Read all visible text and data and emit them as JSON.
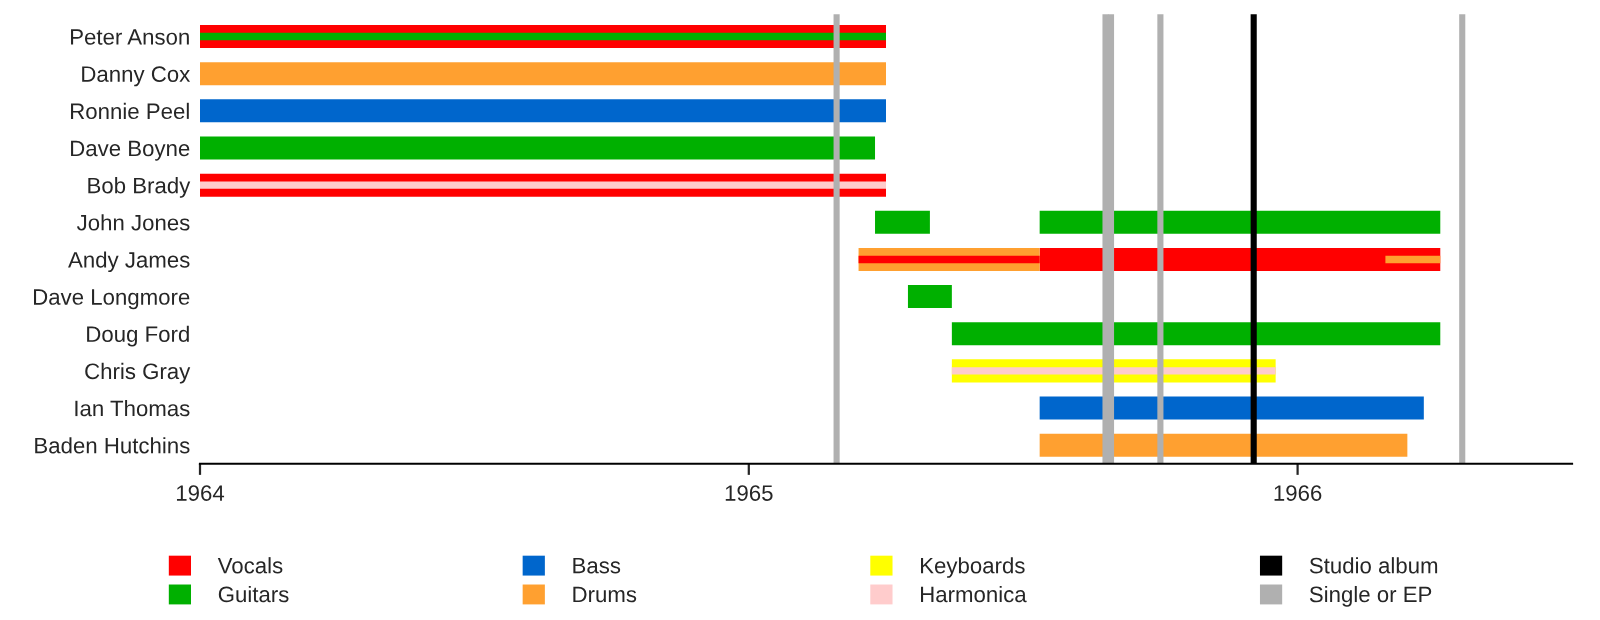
{
  "chart_data": {
    "type": "bar",
    "orientation": "horizontal",
    "categories": [
      "Peter Anson",
      "Danny Cox",
      "Ronnie Peel",
      "Dave Boyne",
      "Bob Brady",
      "John Jones",
      "Andy James",
      "Dave Longmore",
      "Doug Ford",
      "Chris Gray",
      "Ian Thomas",
      "Baden Hutchins"
    ],
    "series": [
      {
        "name": "Vocals",
        "color": "#ff0000",
        "base": [
          1964,
          null,
          null,
          null,
          1964,
          null,
          1965.53,
          null,
          null,
          null,
          null,
          null
        ],
        "values": [
          1.25,
          null,
          null,
          null,
          1.25,
          null,
          0.73,
          null,
          null,
          null,
          null,
          null
        ]
      },
      {
        "name": "Guitars",
        "color": "#00b000",
        "base": [
          null,
          null,
          null,
          1964,
          null,
          1965.23,
          null,
          1965.29,
          1965.37,
          null,
          null,
          null
        ],
        "values": [
          null,
          null,
          null,
          1.23,
          null,
          0.1,
          null,
          0.08,
          0.89,
          null,
          null,
          null
        ]
      },
      {
        "name": "Bass",
        "color": "#0066cc",
        "base": [
          null,
          null,
          1964,
          null,
          null,
          null,
          null,
          null,
          null,
          null,
          1965.53,
          null
        ],
        "values": [
          null,
          null,
          1.25,
          null,
          null,
          null,
          null,
          null,
          null,
          null,
          0.7,
          null
        ]
      },
      {
        "name": "Drums",
        "color": "#ffa030",
        "base": [
          null,
          1964,
          null,
          null,
          null,
          null,
          1965.2,
          null,
          null,
          null,
          null,
          1965.53
        ],
        "values": [
          null,
          1.25,
          null,
          null,
          null,
          null,
          0.33,
          null,
          null,
          null,
          null,
          0.67
        ]
      },
      {
        "name": "Keyboards",
        "color": "#ffff00",
        "base": [
          null,
          null,
          null,
          null,
          null,
          null,
          null,
          null,
          null,
          1965.37,
          null,
          null
        ],
        "values": [
          null,
          null,
          null,
          null,
          null,
          null,
          null,
          null,
          null,
          0.59,
          null,
          null
        ]
      },
      {
        "name": "Harmonica",
        "color": "#ffcccc",
        "base": [
          null,
          null,
          null,
          null,
          1964,
          null,
          null,
          null,
          null,
          1965.37,
          null,
          null
        ],
        "values": [
          null,
          null,
          null,
          null,
          1.25,
          null,
          null,
          null,
          null,
          0.59,
          null,
          null
        ]
      },
      {
        "color": "#00b000",
        "base": [
          1964,
          null,
          null,
          null,
          null,
          1965.53,
          null,
          null,
          null,
          null,
          null,
          null
        ],
        "values": [
          1.25,
          null,
          null,
          null,
          null,
          0.73,
          null,
          null,
          null,
          null,
          null,
          null
        ]
      },
      {
        "color": "#ff0000",
        "base": [
          null,
          null,
          null,
          null,
          null,
          null,
          1965.2,
          null,
          null,
          null,
          null,
          null
        ],
        "values": [
          null,
          null,
          null,
          null,
          null,
          null,
          0.33,
          null,
          null,
          null,
          null,
          null
        ]
      },
      {
        "color": "#ffa030",
        "base": [
          null,
          null,
          null,
          null,
          null,
          null,
          1966.16,
          null,
          null,
          null,
          null,
          null
        ],
        "values": [
          null,
          null,
          null,
          null,
          null,
          null,
          0.1,
          null,
          null,
          null,
          null,
          null
        ]
      }
    ],
    "xlim": [
      1964,
      1966.5
    ],
    "xticks": [
      1964,
      1965,
      1966
    ],
    "ref_lines": [
      {
        "axis": "x",
        "value": 1965.92,
        "color": "#000000",
        "label": "Studio album"
      },
      {
        "axis": "x",
        "value": 1965.16,
        "color": "#b0b0b0",
        "label": "Single or EP"
      },
      {
        "axis": "x",
        "value": 1965.65,
        "color": "#b0b0b0"
      },
      {
        "axis": "x",
        "value": 1965.66,
        "color": "#b0b0b0"
      },
      {
        "axis": "x",
        "value": 1965.75,
        "color": "#b0b0b0"
      },
      {
        "axis": "x",
        "value": 1966.3,
        "color": "#b0b0b0"
      }
    ],
    "legend": "bottom",
    "grid": false
  }
}
